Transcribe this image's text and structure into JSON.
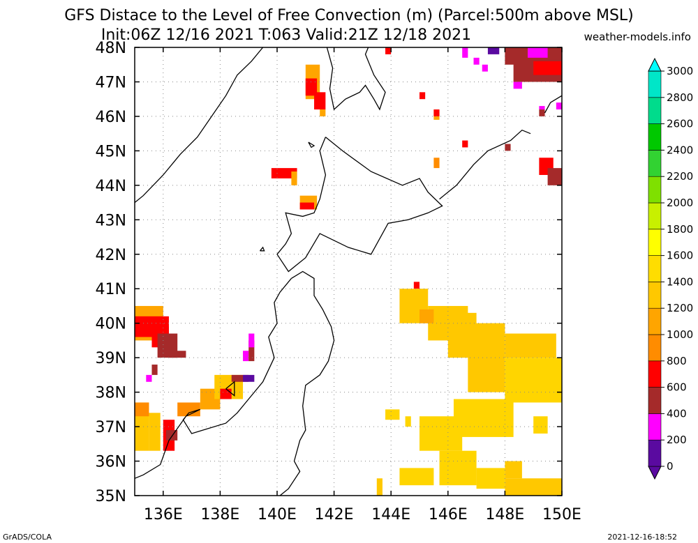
{
  "title_line1": "GFS Distace to the Level of Free Convection (m) (Parcel:500m above MSL)",
  "title_line2": "Init:06Z 12/16 2021 T:063 Valid:21Z 12/18 2021",
  "credit": "weather-models.info",
  "footer_left": "GrADS/COLA",
  "footer_right": "2021-12-16-18:52",
  "map": {
    "lon_range": [
      135,
      150
    ],
    "lat_range": [
      35,
      48
    ],
    "lon_ticks": [
      136,
      138,
      140,
      142,
      144,
      146,
      148,
      150
    ],
    "lon_tick_labels": [
      "136E",
      "138E",
      "140E",
      "142E",
      "144E",
      "146E",
      "148E",
      "150E"
    ],
    "lat_ticks": [
      35,
      36,
      37,
      38,
      39,
      40,
      41,
      42,
      43,
      44,
      45,
      46,
      47,
      48
    ],
    "lat_tick_labels": [
      "35N",
      "36N",
      "37N",
      "38N",
      "39N",
      "40N",
      "41N",
      "42N",
      "43N",
      "44N",
      "45N",
      "46N",
      "47N",
      "48N"
    ],
    "grid": true
  },
  "colorbar": {
    "labels": [
      "0",
      "200",
      "400",
      "600",
      "800",
      "1000",
      "1200",
      "1400",
      "1600",
      "1800",
      "2000",
      "2200",
      "2400",
      "2600",
      "2800",
      "3000"
    ],
    "colors": [
      "#5a0aa0",
      "#ff00ff",
      "#a52a2a",
      "#ff0000",
      "#ff8c00",
      "#ffa500",
      "#ffc800",
      "#ffdd00",
      "#ffff00",
      "#c8f000",
      "#7fe000",
      "#32d232",
      "#00c800",
      "#00dc8c",
      "#00e6c8",
      "#00ffff"
    ]
  },
  "patches": [
    {
      "lon": [
        135.0,
        136.0
      ],
      "lat": [
        39.5,
        40.5
      ],
      "color": "#ffa500"
    },
    {
      "lon": [
        135.0,
        136.2
      ],
      "lat": [
        39.6,
        40.2
      ],
      "color": "#ff0000"
    },
    {
      "lon": [
        135.6,
        136.2
      ],
      "lat": [
        39.3,
        39.9
      ],
      "color": "#ff0000"
    },
    {
      "lon": [
        135.8,
        136.5
      ],
      "lat": [
        39.0,
        39.7
      ],
      "color": "#a52a2a"
    },
    {
      "lon": [
        136.2,
        136.8
      ],
      "lat": [
        39.0,
        39.2
      ],
      "color": "#a52a2a"
    },
    {
      "lon": [
        135.4,
        135.6
      ],
      "lat": [
        38.3,
        38.5
      ],
      "color": "#ff00ff"
    },
    {
      "lon": [
        135.6,
        135.8
      ],
      "lat": [
        38.5,
        38.8
      ],
      "color": "#a52a2a"
    },
    {
      "lon": [
        135.0,
        135.5
      ],
      "lat": [
        36.3,
        37.7
      ],
      "color": "#ffc800"
    },
    {
      "lon": [
        135.5,
        135.9
      ],
      "lat": [
        36.3,
        37.4
      ],
      "color": "#ffc800"
    },
    {
      "lon": [
        135.0,
        135.5
      ],
      "lat": [
        37.3,
        37.7
      ],
      "color": "#ff8c00"
    },
    {
      "lon": [
        136.0,
        136.4
      ],
      "lat": [
        36.3,
        37.2
      ],
      "color": "#ff0000"
    },
    {
      "lon": [
        136.1,
        136.5
      ],
      "lat": [
        36.6,
        36.9
      ],
      "color": "#a52a2a"
    },
    {
      "lon": [
        136.5,
        137.3
      ],
      "lat": [
        37.3,
        37.7
      ],
      "color": "#ff8c00"
    },
    {
      "lon": [
        137.3,
        138.0
      ],
      "lat": [
        37.5,
        38.1
      ],
      "color": "#ffa500"
    },
    {
      "lon": [
        137.8,
        138.8
      ],
      "lat": [
        37.8,
        38.5
      ],
      "color": "#ffc800"
    },
    {
      "lon": [
        138.0,
        138.4
      ],
      "lat": [
        37.8,
        38.1
      ],
      "color": "#ff0000"
    },
    {
      "lon": [
        138.4,
        139.0
      ],
      "lat": [
        38.3,
        38.5
      ],
      "color": "#a52a2a"
    },
    {
      "lon": [
        138.8,
        139.2
      ],
      "lat": [
        38.3,
        38.5
      ],
      "color": "#5a0aa0"
    },
    {
      "lon": [
        138.8,
        139.0
      ],
      "lat": [
        38.9,
        39.2
      ],
      "color": "#ff00ff"
    },
    {
      "lon": [
        139.0,
        139.2
      ],
      "lat": [
        38.9,
        39.5
      ],
      "color": "#a52a2a"
    },
    {
      "lon": [
        139.0,
        139.2
      ],
      "lat": [
        39.3,
        39.7
      ],
      "color": "#ff00ff"
    },
    {
      "lon": [
        139.8,
        140.7
      ],
      "lat": [
        44.2,
        44.5
      ],
      "color": "#ff0000"
    },
    {
      "lon": [
        140.5,
        140.7
      ],
      "lat": [
        44.0,
        44.4
      ],
      "color": "#ffa500"
    },
    {
      "lon": [
        140.8,
        141.4
      ],
      "lat": [
        43.3,
        43.7
      ],
      "color": "#ffa500"
    },
    {
      "lon": [
        140.8,
        141.3
      ],
      "lat": [
        43.3,
        43.5
      ],
      "color": "#ff0000"
    },
    {
      "lon": [
        141.0,
        141.5
      ],
      "lat": [
        46.5,
        47.5
      ],
      "color": "#ffa500"
    },
    {
      "lon": [
        141.0,
        141.4
      ],
      "lat": [
        46.6,
        47.1
      ],
      "color": "#ff0000"
    },
    {
      "lon": [
        141.3,
        141.7
      ],
      "lat": [
        46.2,
        46.7
      ],
      "color": "#ff0000"
    },
    {
      "lon": [
        141.5,
        141.7
      ],
      "lat": [
        46.0,
        46.2
      ],
      "color": "#ffa500"
    },
    {
      "lon": [
        144.8,
        145.0
      ],
      "lat": [
        41.0,
        41.2
      ],
      "color": "#ff0000"
    },
    {
      "lon": [
        144.3,
        145.3
      ],
      "lat": [
        40.0,
        41.0
      ],
      "color": "#ffc800"
    },
    {
      "lon": [
        145.3,
        146.7
      ],
      "lat": [
        39.5,
        40.5
      ],
      "color": "#ffc800"
    },
    {
      "lon": [
        145.0,
        145.5
      ],
      "lat": [
        40.0,
        40.4
      ],
      "color": "#ffa500"
    },
    {
      "lon": [
        146.0,
        147.0
      ],
      "lat": [
        39.0,
        40.3
      ],
      "color": "#ffc800"
    },
    {
      "lon": [
        146.7,
        148.0
      ],
      "lat": [
        38.0,
        40.0
      ],
      "color": "#ffc800"
    },
    {
      "lon": [
        148.0,
        150.0
      ],
      "lat": [
        37.7,
        39.0
      ],
      "color": "#ffd500"
    },
    {
      "lon": [
        148.0,
        149.8
      ],
      "lat": [
        39.0,
        39.7
      ],
      "color": "#ffc800"
    },
    {
      "lon": [
        146.2,
        148.3
      ],
      "lat": [
        36.7,
        37.8
      ],
      "color": "#ffd500"
    },
    {
      "lon": [
        145.0,
        146.5
      ],
      "lat": [
        36.3,
        37.3
      ],
      "color": "#ffd500"
    },
    {
      "lon": [
        143.8,
        144.3
      ],
      "lat": [
        37.2,
        37.5
      ],
      "color": "#ffd500"
    },
    {
      "lon": [
        144.5,
        144.7
      ],
      "lat": [
        37.0,
        37.3
      ],
      "color": "#ffd500"
    },
    {
      "lon": [
        145.7,
        147.0
      ],
      "lat": [
        35.3,
        36.3
      ],
      "color": "#ffd500"
    },
    {
      "lon": [
        144.3,
        145.5
      ],
      "lat": [
        35.3,
        35.8
      ],
      "color": "#ffd500"
    },
    {
      "lon": [
        147.0,
        148.0
      ],
      "lat": [
        35.2,
        35.8
      ],
      "color": "#ffd500"
    },
    {
      "lon": [
        148.0,
        150.0
      ],
      "lat": [
        35.0,
        35.5
      ],
      "color": "#ffc800"
    },
    {
      "lon": [
        148.0,
        148.6
      ],
      "lat": [
        35.5,
        36.0
      ],
      "color": "#ffc800"
    },
    {
      "lon": [
        143.5,
        143.7
      ],
      "lat": [
        35.0,
        35.5
      ],
      "color": "#ffc800"
    },
    {
      "lon": [
        149.0,
        149.5
      ],
      "lat": [
        36.8,
        37.3
      ],
      "color": "#ffd500"
    },
    {
      "lon": [
        148.3,
        150.0
      ],
      "lat": [
        47.0,
        48.0
      ],
      "color": "#a52a2a"
    },
    {
      "lon": [
        149.0,
        150.0
      ],
      "lat": [
        47.2,
        47.6
      ],
      "color": "#ff0000"
    },
    {
      "lon": [
        148.0,
        148.5
      ],
      "lat": [
        47.5,
        48.0
      ],
      "color": "#a52a2a"
    },
    {
      "lon": [
        148.8,
        149.5
      ],
      "lat": [
        47.7,
        48.0
      ],
      "color": "#ff00ff"
    },
    {
      "lon": [
        148.3,
        148.6
      ],
      "lat": [
        46.8,
        47.0
      ],
      "color": "#ff00ff"
    },
    {
      "lon": [
        147.2,
        147.4
      ],
      "lat": [
        47.3,
        47.5
      ],
      "color": "#ff00ff"
    },
    {
      "lon": [
        147.4,
        147.8
      ],
      "lat": [
        47.8,
        48.0
      ],
      "color": "#5a0aa0"
    },
    {
      "lon": [
        146.5,
        146.7
      ],
      "lat": [
        47.7,
        48.0
      ],
      "color": "#ff00ff"
    },
    {
      "lon": [
        146.9,
        147.1
      ],
      "lat": [
        47.5,
        47.7
      ],
      "color": "#ff00ff"
    },
    {
      "lon": [
        149.8,
        150.0
      ],
      "lat": [
        46.2,
        46.4
      ],
      "color": "#ff00ff"
    },
    {
      "lon": [
        149.2,
        149.4
      ],
      "lat": [
        46.0,
        46.2
      ],
      "color": "#a52a2a"
    },
    {
      "lon": [
        149.2,
        149.4
      ],
      "lat": [
        46.2,
        46.3
      ],
      "color": "#ff00ff"
    },
    {
      "lon": [
        149.2,
        149.7
      ],
      "lat": [
        44.3,
        44.8
      ],
      "color": "#ff0000"
    },
    {
      "lon": [
        149.5,
        150.0
      ],
      "lat": [
        44.0,
        44.5
      ],
      "color": "#a52a2a"
    },
    {
      "lon": [
        148.0,
        148.2
      ],
      "lat": [
        45.0,
        45.2
      ],
      "color": "#a52a2a"
    },
    {
      "lon": [
        146.5,
        146.7
      ],
      "lat": [
        45.1,
        45.3
      ],
      "color": "#ff0000"
    },
    {
      "lon": [
        145.5,
        145.7
      ],
      "lat": [
        44.5,
        44.8
      ],
      "color": "#ff8c00"
    },
    {
      "lon": [
        145.5,
        145.7
      ],
      "lat": [
        45.9,
        46.2
      ],
      "color": "#ffa500"
    },
    {
      "lon": [
        145.5,
        145.7
      ],
      "lat": [
        46.0,
        46.2
      ],
      "color": "#ff0000"
    },
    {
      "lon": [
        145.0,
        145.2
      ],
      "lat": [
        46.5,
        46.7
      ],
      "color": "#ff0000"
    },
    {
      "lon": [
        143.8,
        144.0
      ],
      "lat": [
        47.8,
        48.0
      ],
      "color": "#ff0000"
    }
  ],
  "coastlines": [
    [
      [
        135.0,
        43.5
      ],
      [
        135.3,
        43.7
      ],
      [
        136.0,
        44.3
      ],
      [
        136.6,
        44.9
      ],
      [
        137.2,
        45.4
      ],
      [
        137.7,
        46.0
      ],
      [
        138.2,
        46.6
      ],
      [
        138.6,
        47.2
      ],
      [
        139.1,
        47.6
      ],
      [
        139.5,
        48.0
      ]
    ],
    [
      [
        141.75,
        48.0
      ],
      [
        141.95,
        47.4
      ],
      [
        141.85,
        46.8
      ],
      [
        142.0,
        46.2
      ],
      [
        142.4,
        46.5
      ],
      [
        142.9,
        46.7
      ],
      [
        143.1,
        46.9
      ],
      [
        143.4,
        46.5
      ],
      [
        143.6,
        46.2
      ],
      [
        143.8,
        46.7
      ],
      [
        143.4,
        47.2
      ],
      [
        143.1,
        47.8
      ],
      [
        143.2,
        48.0
      ]
    ],
    [
      [
        141.7,
        45.4
      ],
      [
        141.5,
        45.0
      ],
      [
        141.7,
        44.3
      ],
      [
        141.5,
        43.6
      ],
      [
        141.3,
        43.2
      ],
      [
        140.9,
        43.1
      ],
      [
        140.3,
        43.2
      ],
      [
        140.5,
        42.6
      ],
      [
        140.3,
        42.3
      ],
      [
        140.0,
        42.0
      ],
      [
        140.4,
        41.5
      ],
      [
        141.0,
        41.9
      ],
      [
        141.5,
        42.6
      ],
      [
        142.5,
        42.2
      ],
      [
        143.3,
        42.0
      ],
      [
        143.5,
        42.3
      ],
      [
        143.9,
        42.9
      ],
      [
        144.6,
        43.0
      ],
      [
        145.3,
        43.2
      ],
      [
        145.8,
        43.4
      ],
      [
        145.3,
        43.8
      ],
      [
        145.0,
        44.2
      ],
      [
        144.4,
        44.0
      ],
      [
        143.3,
        44.4
      ],
      [
        142.3,
        45.0
      ],
      [
        141.7,
        45.4
      ]
    ],
    [
      [
        145.7,
        43.6
      ],
      [
        146.3,
        44.0
      ],
      [
        146.9,
        44.6
      ],
      [
        147.4,
        45.0
      ],
      [
        148.2,
        45.3
      ],
      [
        148.6,
        45.6
      ],
      [
        148.9,
        45.5
      ]
    ],
    [
      [
        140.5,
        41.3
      ],
      [
        140.9,
        41.5
      ],
      [
        141.3,
        41.3
      ],
      [
        141.3,
        40.8
      ],
      [
        141.6,
        40.4
      ],
      [
        141.9,
        39.9
      ],
      [
        142.0,
        39.5
      ],
      [
        141.8,
        38.9
      ],
      [
        141.5,
        38.5
      ],
      [
        141.0,
        38.2
      ],
      [
        140.9,
        37.6
      ],
      [
        141.0,
        36.9
      ],
      [
        140.8,
        36.6
      ],
      [
        140.6,
        36.0
      ],
      [
        140.8,
        35.7
      ],
      [
        140.4,
        35.2
      ],
      [
        140.1,
        35.0
      ]
    ],
    [
      [
        140.5,
        41.3
      ],
      [
        140.1,
        40.9
      ],
      [
        139.9,
        40.6
      ],
      [
        140.0,
        40.0
      ],
      [
        139.7,
        39.6
      ],
      [
        139.9,
        39.0
      ],
      [
        139.5,
        38.3
      ],
      [
        139.0,
        37.8
      ],
      [
        138.6,
        37.4
      ],
      [
        138.2,
        37.1
      ],
      [
        137.4,
        36.9
      ],
      [
        137.0,
        36.8
      ],
      [
        136.7,
        37.2
      ],
      [
        136.9,
        37.4
      ],
      [
        137.3,
        37.5
      ],
      [
        136.8,
        37.3
      ],
      [
        136.2,
        36.6
      ],
      [
        135.9,
        35.9
      ],
      [
        135.3,
        35.6
      ],
      [
        135.0,
        35.5
      ]
    ],
    [
      [
        138.2,
        38.1
      ],
      [
        138.5,
        38.3
      ],
      [
        138.5,
        37.9
      ],
      [
        138.2,
        38.1
      ]
    ],
    [
      [
        150.0,
        46.6
      ],
      [
        149.6,
        46.4
      ],
      [
        149.4,
        46.1
      ]
    ],
    [
      [
        141.1,
        45.25
      ],
      [
        141.3,
        45.15
      ],
      [
        141.2,
        45.1
      ],
      [
        141.1,
        45.25
      ]
    ],
    [
      [
        139.4,
        42.1
      ],
      [
        139.5,
        42.2
      ],
      [
        139.55,
        42.1
      ],
      [
        139.4,
        42.1
      ]
    ]
  ]
}
